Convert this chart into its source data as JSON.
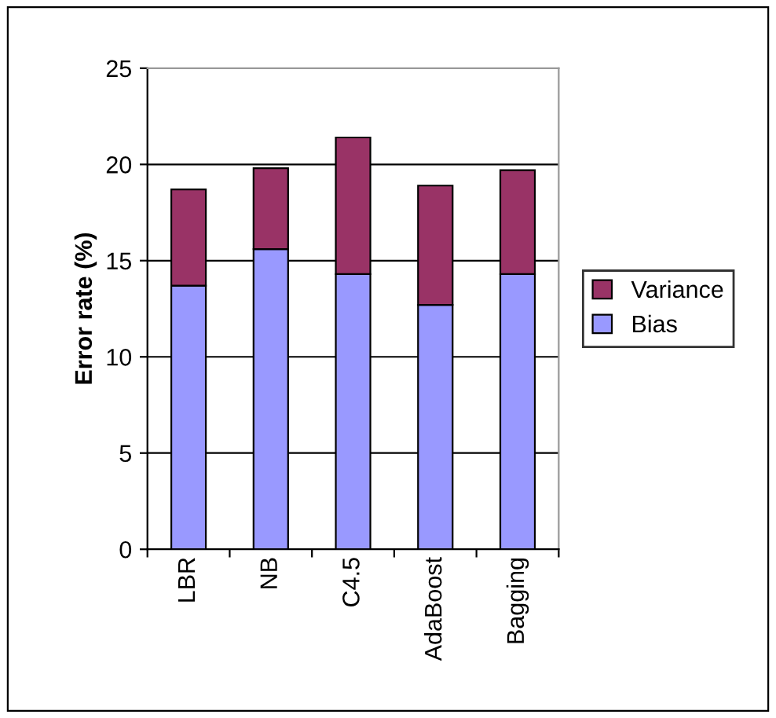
{
  "chart_data": {
    "type": "bar",
    "stacked": true,
    "ylabel": "Error rate (%)",
    "categories": [
      "LBR",
      "NB",
      "C4.5",
      "AdaBoost",
      "Bagging"
    ],
    "series": [
      {
        "name": "Bias",
        "color": "#9999ff",
        "values": [
          13.7,
          15.6,
          14.3,
          12.7,
          14.3
        ]
      },
      {
        "name": "Variance",
        "color": "#993366",
        "values": [
          5.0,
          4.2,
          7.1,
          6.2,
          5.4
        ]
      }
    ],
    "ylim": [
      0,
      25
    ],
    "yticks": [
      0,
      5,
      10,
      15,
      20,
      25
    ],
    "grid": "y",
    "legend": "right"
  }
}
